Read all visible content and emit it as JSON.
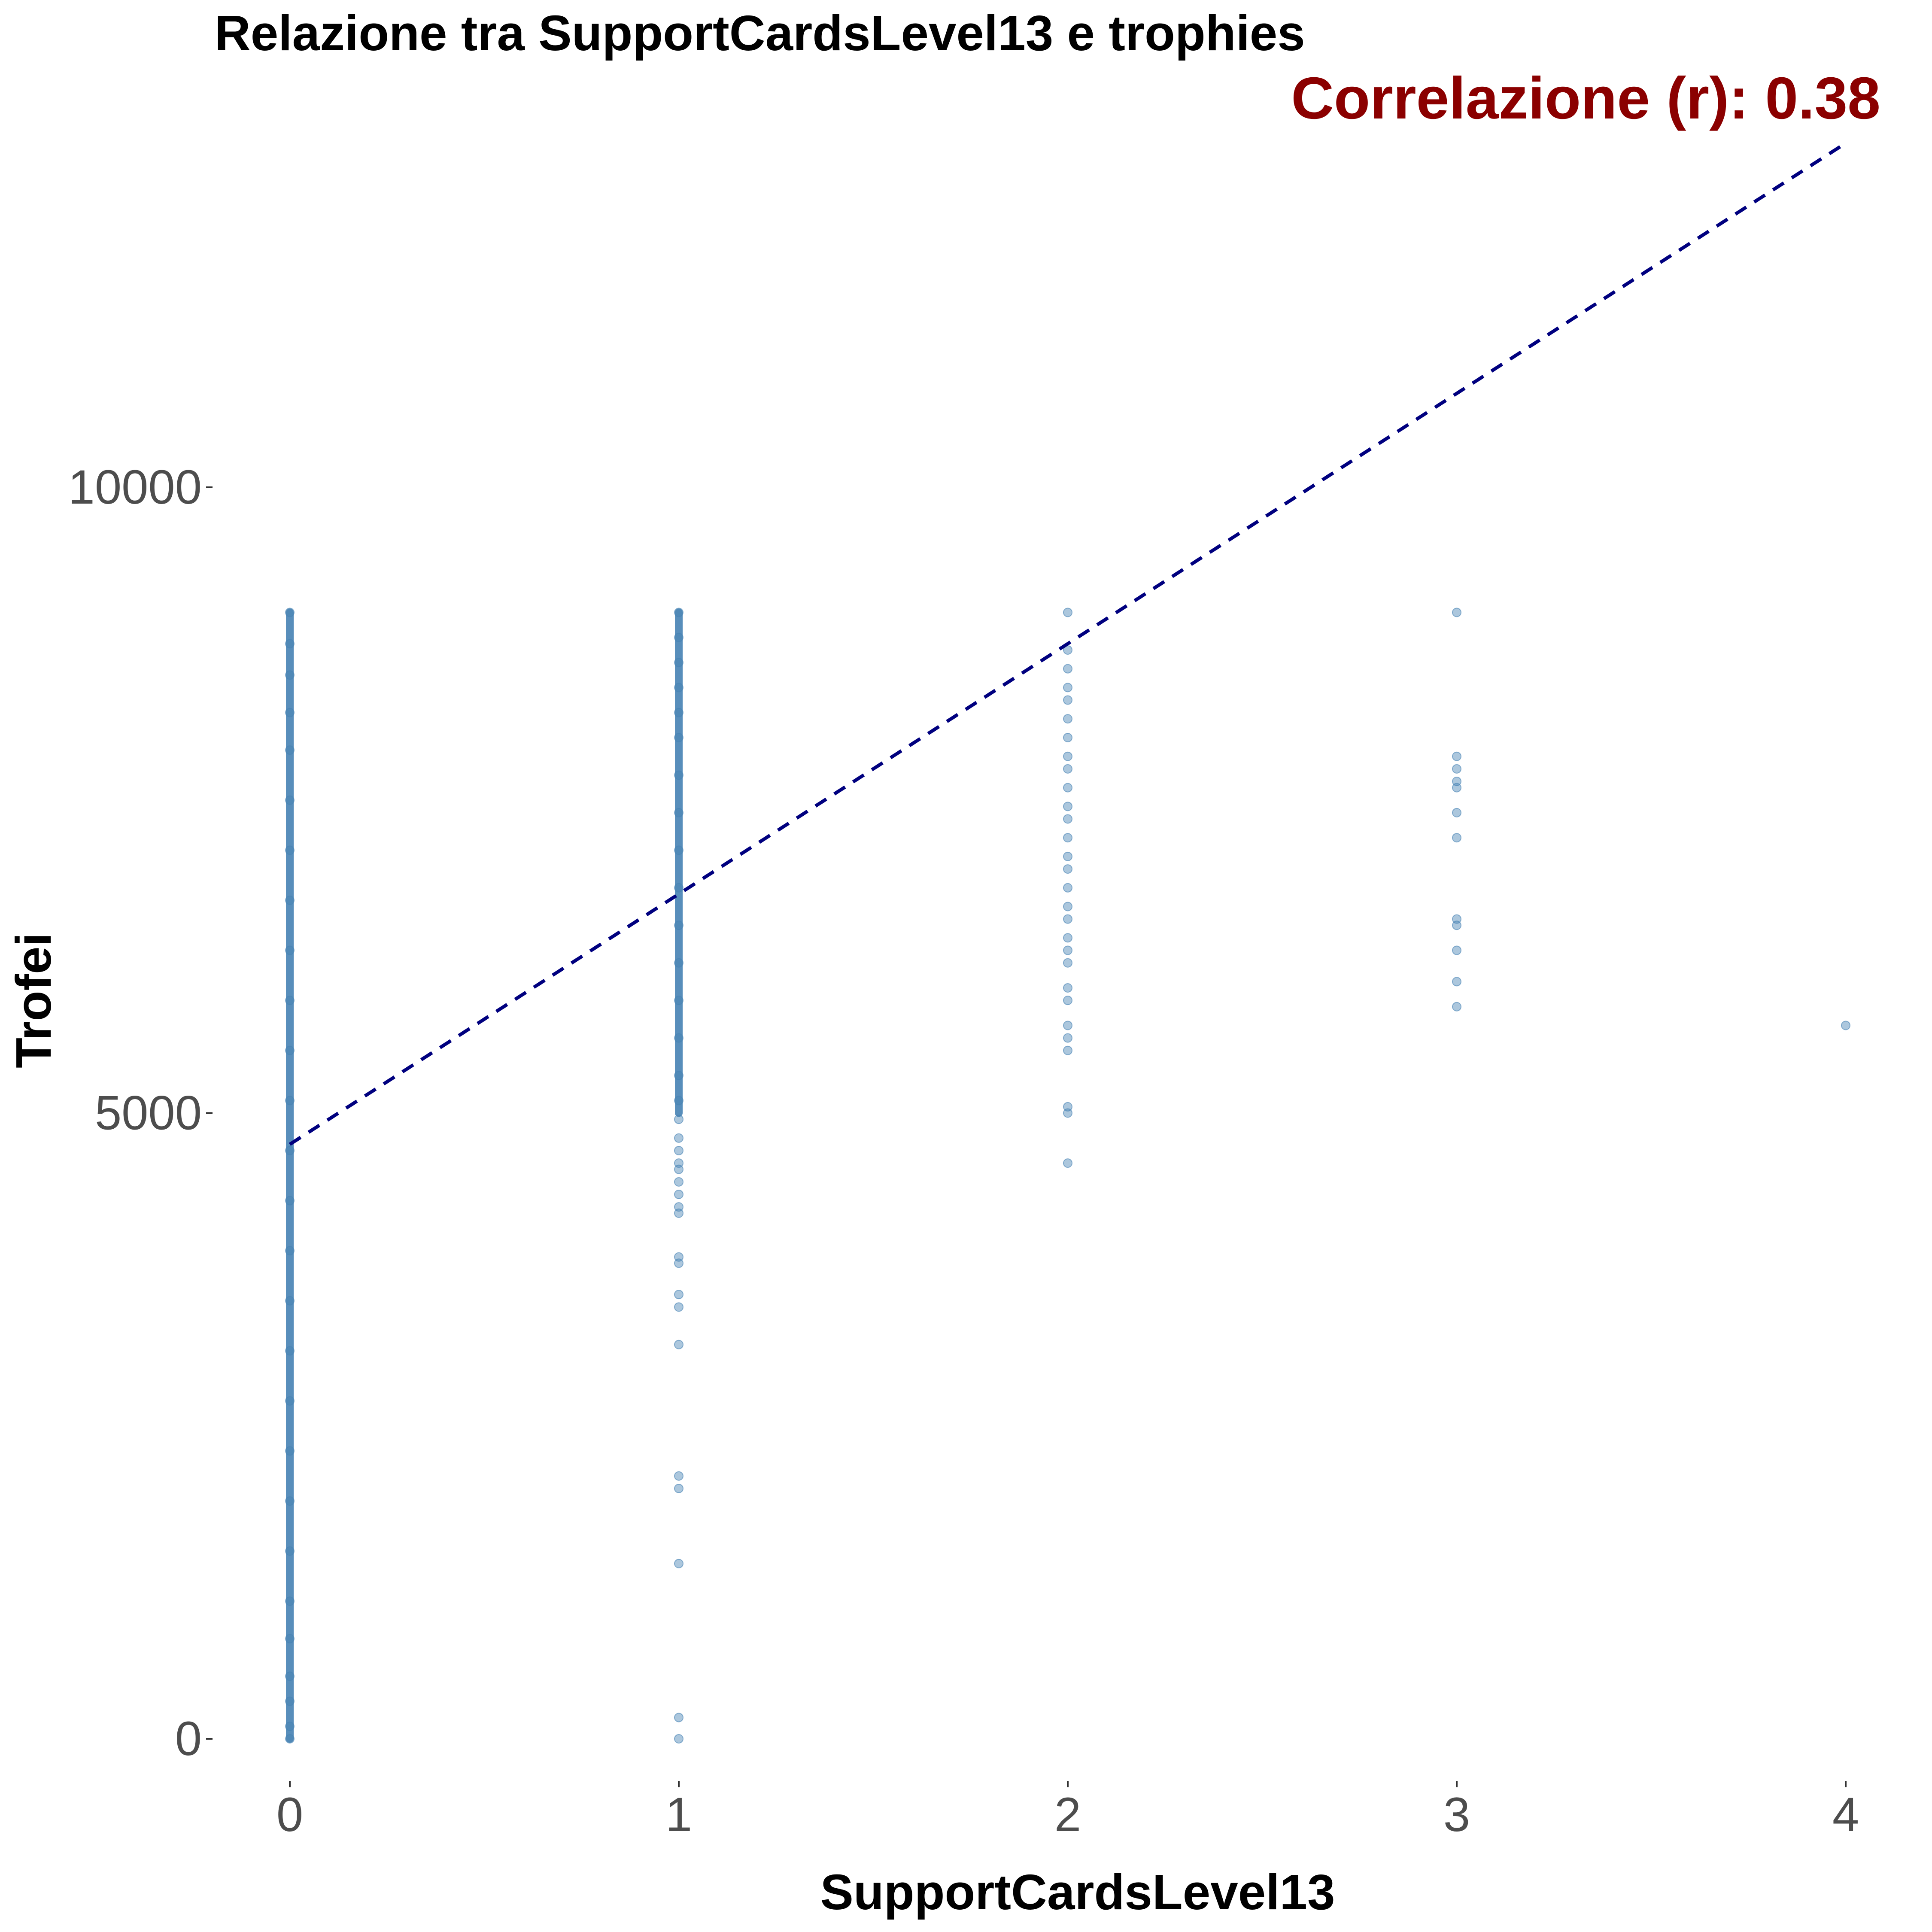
{
  "chart_data": {
    "type": "scatter",
    "title": "Relazione tra SupportCardsLevel13 e trophies",
    "xlabel": "SupportCardsLevel13",
    "ylabel": "Trofei",
    "annotation": "Correlazione (r): 0.38",
    "xlim": [
      -0.2,
      4.0
    ],
    "ylim": [
      -600,
      13800
    ],
    "x_ticks": [
      0,
      1,
      2,
      3,
      4
    ],
    "y_ticks": [
      0,
      5000,
      10000
    ],
    "grid": false,
    "point_color": "#4682b4",
    "trend_color": "#00007f",
    "annotation_color": "#8b0000",
    "trendline": {
      "style": "dashed",
      "x": [
        0,
        4
      ],
      "y": [
        4750,
        12750
      ]
    },
    "points": [
      {
        "x": 0,
        "y": 0
      },
      {
        "x": 0,
        "y": 100
      },
      {
        "x": 0,
        "y": 300
      },
      {
        "x": 0,
        "y": 500
      },
      {
        "x": 0,
        "y": 800
      },
      {
        "x": 0,
        "y": 1100
      },
      {
        "x": 0,
        "y": 1500
      },
      {
        "x": 0,
        "y": 1900
      },
      {
        "x": 0,
        "y": 2300
      },
      {
        "x": 0,
        "y": 2700
      },
      {
        "x": 0,
        "y": 3100
      },
      {
        "x": 0,
        "y": 3500
      },
      {
        "x": 0,
        "y": 3900
      },
      {
        "x": 0,
        "y": 4300
      },
      {
        "x": 0,
        "y": 4700
      },
      {
        "x": 0,
        "y": 5100
      },
      {
        "x": 0,
        "y": 5500
      },
      {
        "x": 0,
        "y": 5900
      },
      {
        "x": 0,
        "y": 6300
      },
      {
        "x": 0,
        "y": 6700
      },
      {
        "x": 0,
        "y": 7100
      },
      {
        "x": 0,
        "y": 7500
      },
      {
        "x": 0,
        "y": 7900
      },
      {
        "x": 0,
        "y": 8200
      },
      {
        "x": 0,
        "y": 8500
      },
      {
        "x": 0,
        "y": 8750
      },
      {
        "x": 0,
        "y": 9000
      },
      {
        "x": 1,
        "y": 0
      },
      {
        "x": 1,
        "y": 170
      },
      {
        "x": 1,
        "y": 1400
      },
      {
        "x": 1,
        "y": 2000
      },
      {
        "x": 1,
        "y": 2100
      },
      {
        "x": 1,
        "y": 3150
      },
      {
        "x": 1,
        "y": 3450
      },
      {
        "x": 1,
        "y": 3550
      },
      {
        "x": 1,
        "y": 3800
      },
      {
        "x": 1,
        "y": 3850
      },
      {
        "x": 1,
        "y": 4200
      },
      {
        "x": 1,
        "y": 4250
      },
      {
        "x": 1,
        "y": 4350
      },
      {
        "x": 1,
        "y": 4450
      },
      {
        "x": 1,
        "y": 4550
      },
      {
        "x": 1,
        "y": 4600
      },
      {
        "x": 1,
        "y": 4700
      },
      {
        "x": 1,
        "y": 4800
      },
      {
        "x": 1,
        "y": 4950
      },
      {
        "x": 1,
        "y": 5100
      },
      {
        "x": 1,
        "y": 5300
      },
      {
        "x": 1,
        "y": 5600
      },
      {
        "x": 1,
        "y": 5900
      },
      {
        "x": 1,
        "y": 6200
      },
      {
        "x": 1,
        "y": 6500
      },
      {
        "x": 1,
        "y": 6800
      },
      {
        "x": 1,
        "y": 7100
      },
      {
        "x": 1,
        "y": 7400
      },
      {
        "x": 1,
        "y": 7700
      },
      {
        "x": 1,
        "y": 8000
      },
      {
        "x": 1,
        "y": 8200
      },
      {
        "x": 1,
        "y": 8400
      },
      {
        "x": 1,
        "y": 8600
      },
      {
        "x": 1,
        "y": 8800
      },
      {
        "x": 1,
        "y": 9000
      },
      {
        "x": 2,
        "y": 4600
      },
      {
        "x": 2,
        "y": 5000
      },
      {
        "x": 2,
        "y": 5050
      },
      {
        "x": 2,
        "y": 5500
      },
      {
        "x": 2,
        "y": 5600
      },
      {
        "x": 2,
        "y": 5700
      },
      {
        "x": 2,
        "y": 5900
      },
      {
        "x": 2,
        "y": 6000
      },
      {
        "x": 2,
        "y": 6200
      },
      {
        "x": 2,
        "y": 6300
      },
      {
        "x": 2,
        "y": 6400
      },
      {
        "x": 2,
        "y": 6550
      },
      {
        "x": 2,
        "y": 6650
      },
      {
        "x": 2,
        "y": 6800
      },
      {
        "x": 2,
        "y": 6950
      },
      {
        "x": 2,
        "y": 7050
      },
      {
        "x": 2,
        "y": 7200
      },
      {
        "x": 2,
        "y": 7350
      },
      {
        "x": 2,
        "y": 7450
      },
      {
        "x": 2,
        "y": 7600
      },
      {
        "x": 2,
        "y": 7750
      },
      {
        "x": 2,
        "y": 7850
      },
      {
        "x": 2,
        "y": 8000
      },
      {
        "x": 2,
        "y": 8150
      },
      {
        "x": 2,
        "y": 8300
      },
      {
        "x": 2,
        "y": 8400
      },
      {
        "x": 2,
        "y": 8550
      },
      {
        "x": 2,
        "y": 8700
      },
      {
        "x": 2,
        "y": 9000
      },
      {
        "x": 3,
        "y": 5850
      },
      {
        "x": 3,
        "y": 6050
      },
      {
        "x": 3,
        "y": 6300
      },
      {
        "x": 3,
        "y": 6500
      },
      {
        "x": 3,
        "y": 6550
      },
      {
        "x": 3,
        "y": 7200
      },
      {
        "x": 3,
        "y": 7400
      },
      {
        "x": 3,
        "y": 7600
      },
      {
        "x": 3,
        "y": 7650
      },
      {
        "x": 3,
        "y": 7750
      },
      {
        "x": 3,
        "y": 7850
      },
      {
        "x": 3,
        "y": 9000
      },
      {
        "x": 4,
        "y": 5700
      }
    ]
  }
}
